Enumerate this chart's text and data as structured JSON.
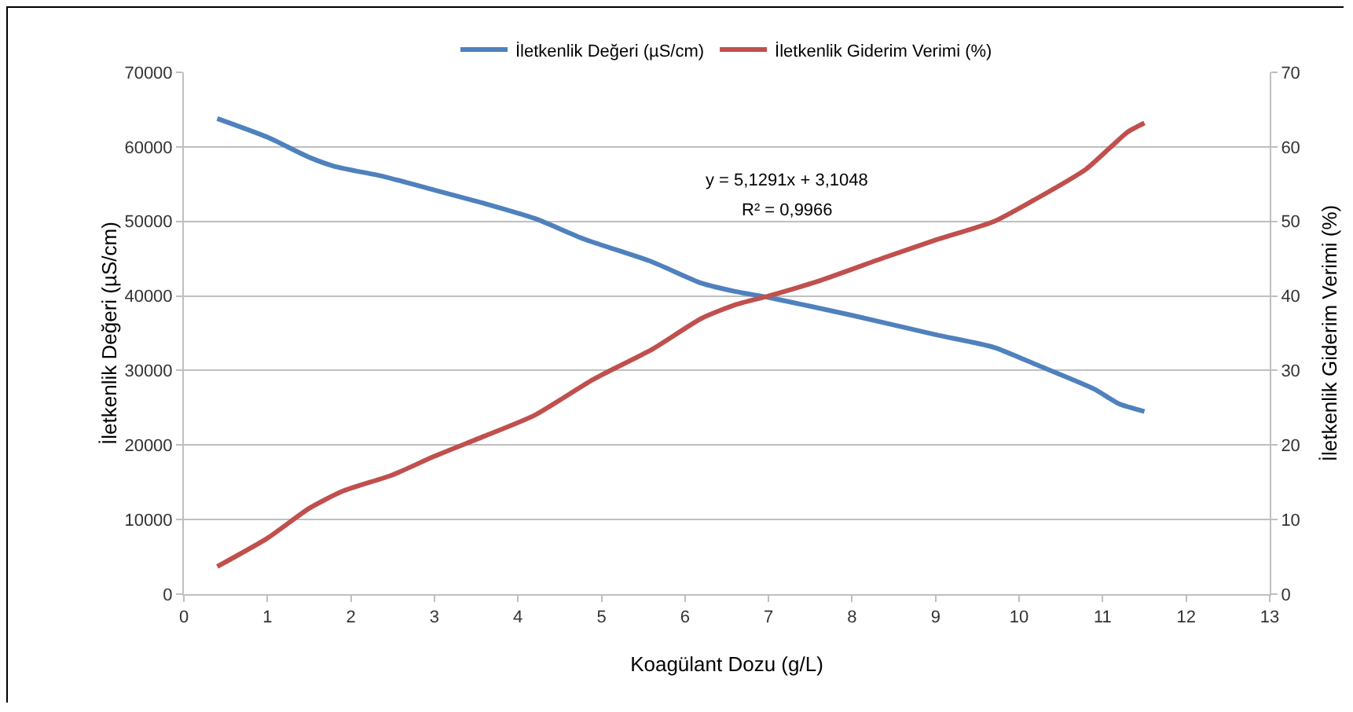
{
  "chart_data": {
    "type": "line",
    "xlabel": "Koagülant Dozu (g/L)",
    "ylabel": "İletkenlik Değeri (µS/cm)",
    "y2label": "İletkenlik Giderim Verimi (%)",
    "annotations": [
      "y = 5,1291x + 3,1048",
      "R² = 0,9966"
    ],
    "series": [
      {
        "name": "İletkenlik Değeri (µS/cm)",
        "color": "#4f81bd",
        "x": [
          0.4,
          1,
          1.5,
          1.8,
          2.4,
          3,
          3.6,
          4.2,
          4.8,
          5.6,
          6.2,
          6.6,
          7,
          8,
          9,
          9.7,
          10.2,
          10.9,
          11.2,
          11.5
        ],
        "values": [
          63800,
          61300,
          58600,
          57400,
          56000,
          54200,
          52400,
          50400,
          47600,
          44600,
          41700,
          40600,
          39800,
          37400,
          34800,
          33100,
          30800,
          27500,
          25500,
          24500
        ]
      },
      {
        "name": "İletkenlik Giderim Verimi (%)",
        "color": "#c0504d",
        "axis": "y2",
        "x": [
          0.4,
          1,
          1.5,
          1.9,
          2.5,
          3,
          3.6,
          4.2,
          4.9,
          5.6,
          6.2,
          6.6,
          7,
          7.6,
          8.4,
          9,
          9.7,
          10.2,
          10.8,
          11.1,
          11.3,
          11.5
        ],
        "values": [
          3.7,
          7.5,
          11.5,
          13.8,
          16,
          18.5,
          21.2,
          24,
          28.8,
          32.8,
          37,
          38.8,
          40,
          42,
          45.2,
          47.5,
          50,
          53,
          57,
          60,
          62,
          63.2
        ]
      }
    ],
    "xlim": [
      0,
      13
    ],
    "xticks": [
      0,
      1,
      2,
      3,
      4,
      5,
      6,
      7,
      8,
      9,
      10,
      11,
      12,
      13
    ],
    "ylim": [
      0,
      70000
    ],
    "yticks": [
      0,
      10000,
      20000,
      30000,
      40000,
      50000,
      60000,
      70000
    ],
    "y2lim": [
      0,
      70
    ],
    "y2ticks": [
      0,
      10,
      20,
      30,
      40,
      50,
      60,
      70
    ],
    "grid": "y",
    "legend": "top",
    "marker": "none",
    "line_style": "solid"
  }
}
